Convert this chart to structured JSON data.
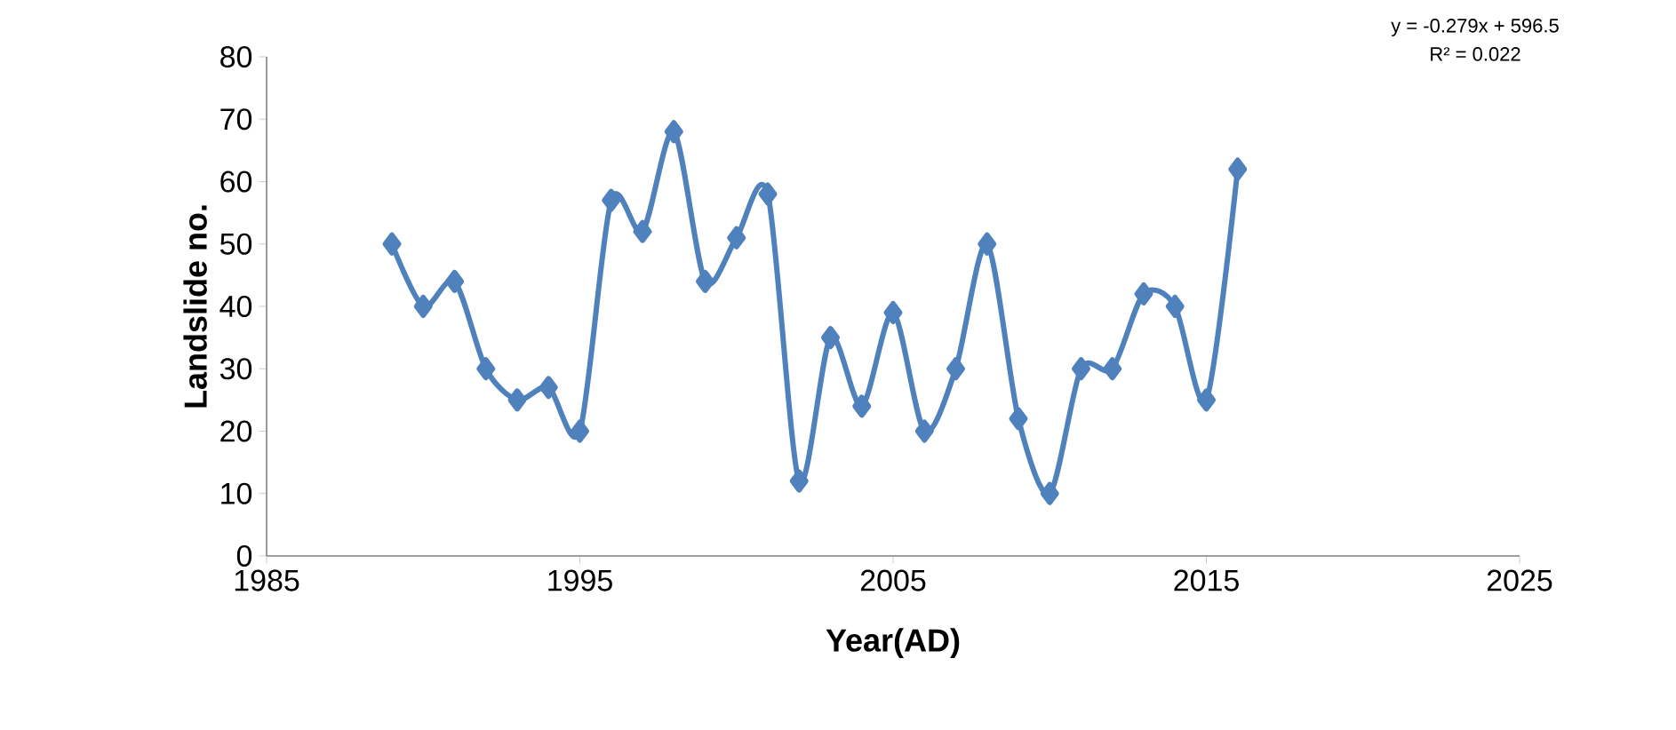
{
  "chart_data": {
    "type": "line",
    "xlabel": "Year(AD)",
    "ylabel": "Landslide no.",
    "x": [
      1989,
      1990,
      1991,
      1992,
      1993,
      1994,
      1995,
      1996,
      1997,
      1998,
      1999,
      2000,
      2001,
      2002,
      2003,
      2004,
      2005,
      2006,
      2007,
      2008,
      2009,
      2010,
      2011,
      2012,
      2013,
      2014,
      2015,
      2016
    ],
    "series": [
      {
        "color": "#4f81bd",
        "values": [
          50,
          40,
          44,
          30,
          25,
          27,
          20,
          57,
          52,
          68,
          44,
          51,
          58,
          12,
          35,
          24,
          39,
          20,
          30,
          50,
          22,
          10,
          30,
          30,
          42,
          40,
          25,
          62
        ]
      }
    ],
    "xlim": [
      1985,
      2025
    ],
    "xticks": [
      1985,
      1995,
      2005,
      2015,
      2025
    ],
    "ylim": [
      0,
      80
    ],
    "yticks": [
      0,
      10,
      20,
      30,
      40,
      50,
      60,
      70,
      80
    ],
    "marker": "diamond",
    "line_style": "solid",
    "grid": false,
    "annotations": [
      "y = -0.279x + 596.5",
      "R² = 0.022"
    ]
  }
}
